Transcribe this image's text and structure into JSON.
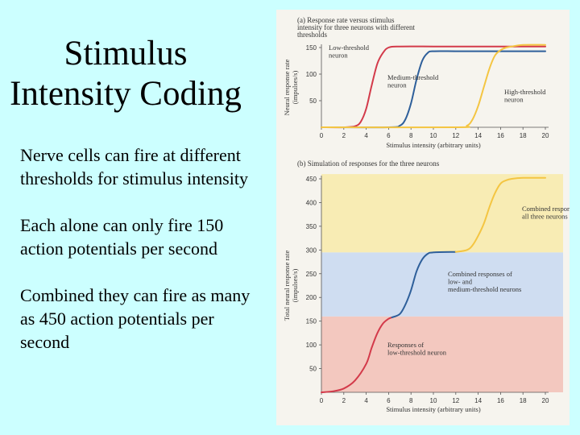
{
  "slide": {
    "title_lines": [
      "Stimulus",
      "Intensity Coding"
    ],
    "bullets": [
      "Nerve cells can fire at different thresholds for stimulus intensity",
      "Each alone can only fire 150 action potentials per second",
      "Combined they can fire as many as 450 action potentials per second"
    ]
  },
  "chart_data": [
    {
      "type": "line",
      "title": "(a) Response rate versus stimulus intensity for three neurons with different thresholds",
      "xlabel": "Stimulus intensity (arbitrary units)",
      "ylabel": "Neural response rate (impulses/s)",
      "xlim": [
        0,
        20
      ],
      "ylim": [
        0,
        150
      ],
      "x_ticks": [
        0,
        2,
        4,
        6,
        8,
        10,
        12,
        14,
        16,
        18,
        20
      ],
      "y_ticks": [
        50,
        100,
        150
      ],
      "grid": false,
      "series": [
        {
          "name": "Low-threshold neuron",
          "color": "#d33a4a",
          "x": [
            0,
            2,
            3,
            3.5,
            4,
            4.5,
            5,
            5.5,
            6,
            7,
            10,
            12,
            14,
            16,
            20
          ],
          "y": [
            0,
            0,
            2,
            10,
            35,
            80,
            120,
            140,
            150,
            152,
            152,
            152,
            152,
            152,
            152
          ]
        },
        {
          "name": "Medium-threshold neuron",
          "color": "#2e5f9a",
          "x": [
            0,
            6,
            7,
            7.5,
            8,
            8.5,
            9,
            9.5,
            10,
            12,
            14,
            16,
            20
          ],
          "y": [
            0,
            0,
            3,
            15,
            45,
            90,
            125,
            140,
            143,
            143,
            143,
            143,
            143
          ]
        },
        {
          "name": "High-threshold neuron",
          "color": "#f4c542",
          "x": [
            0,
            12,
            13,
            13.5,
            14,
            14.5,
            15,
            15.5,
            16,
            16.5,
            17,
            18,
            20
          ],
          "y": [
            0,
            0,
            3,
            15,
            40,
            75,
            110,
            135,
            145,
            150,
            152,
            155,
            155
          ]
        }
      ],
      "annotations": [
        "Low-threshold neuron",
        "Medium-threshold neuron",
        "High-threshold neuron"
      ]
    },
    {
      "type": "area",
      "title": "(b) Simulation of responses for the three neurons",
      "xlabel": "Stimulus intensity (arbitrary units)",
      "ylabel": "Total neural response rate (impulses/s)",
      "xlim": [
        0,
        20
      ],
      "ylim": [
        0,
        450
      ],
      "x_ticks": [
        0,
        2,
        4,
        6,
        8,
        10,
        12,
        14,
        16,
        18,
        20
      ],
      "y_ticks": [
        50,
        100,
        150,
        200,
        250,
        300,
        350,
        400,
        450
      ],
      "grid": false,
      "bands": [
        {
          "label": "Responses of low-threshold neuron",
          "range": [
            0,
            160
          ],
          "color": "#f3c8bf"
        },
        {
          "label": "Combined responses of low- and medium-threshold neurons",
          "range": [
            160,
            295
          ],
          "color": "#cfddf1"
        },
        {
          "label": "Combined responses of all three neurons",
          "range": [
            295,
            460
          ],
          "color": "#f8ecb4"
        }
      ],
      "series": [
        {
          "name": "Low-threshold segment",
          "color": "#d33a4a",
          "x": [
            0,
            1,
            2,
            3,
            4,
            4.5,
            5,
            5.5,
            6,
            6.3
          ],
          "y": [
            0,
            2,
            8,
            25,
            60,
            95,
            125,
            145,
            155,
            158
          ]
        },
        {
          "name": "Medium-threshold segment",
          "color": "#2e5f9a",
          "x": [
            6.3,
            7,
            7.5,
            8,
            8.5,
            9,
            9.5,
            10,
            12
          ],
          "y": [
            158,
            165,
            185,
            215,
            255,
            280,
            292,
            295,
            296
          ]
        },
        {
          "name": "High-threshold segment",
          "color": "#f4c542",
          "x": [
            12,
            13,
            13.5,
            14,
            14.5,
            15,
            15.5,
            16,
            16.5,
            17,
            18,
            20
          ],
          "y": [
            296,
            300,
            310,
            330,
            355,
            390,
            420,
            440,
            447,
            450,
            452,
            452
          ]
        }
      ],
      "annotations": [
        "Responses of low-threshold neuron",
        "Combined responses of low- and medium-threshold neurons",
        "Combined responses of all three neurons"
      ]
    }
  ]
}
